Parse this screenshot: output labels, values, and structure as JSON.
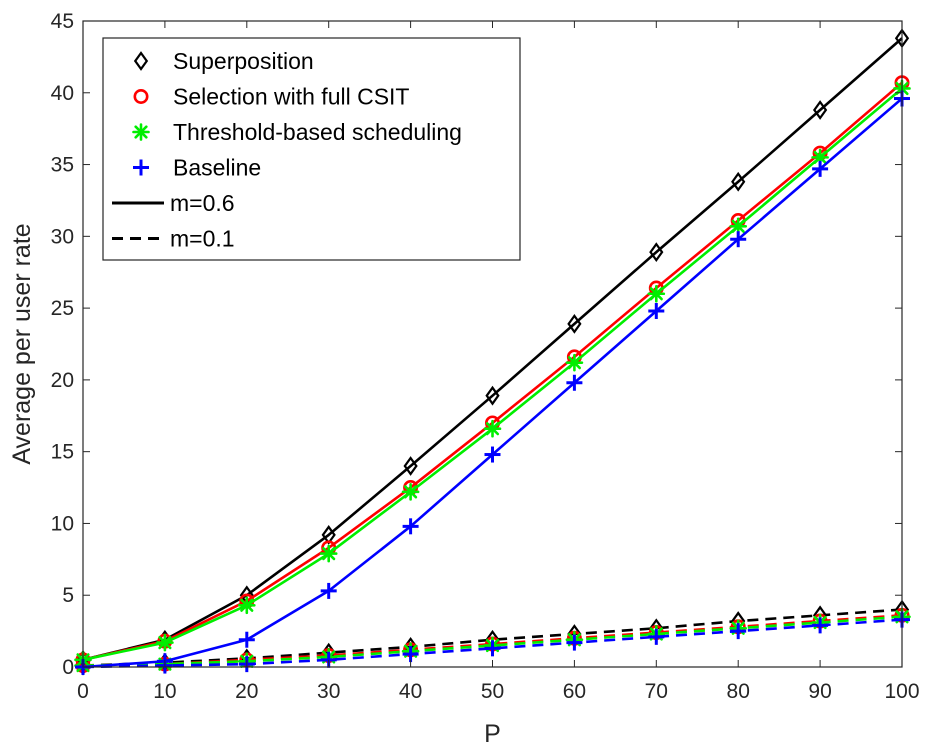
{
  "chart_data": {
    "type": "line",
    "title": "",
    "xlabel": "P",
    "ylabel": "Average per user rate",
    "xlim": [
      0,
      100
    ],
    "ylim": [
      0,
      45
    ],
    "xticks": [
      "0",
      "10",
      "20",
      "30",
      "40",
      "50",
      "60",
      "70",
      "80",
      "90",
      "100"
    ],
    "yticks": [
      "0",
      "5",
      "10",
      "15",
      "20",
      "25",
      "30",
      "35",
      "40",
      "45"
    ],
    "grid": false,
    "legend_position": "top-left",
    "x": [
      0,
      10,
      20,
      30,
      40,
      50,
      60,
      70,
      80,
      90,
      100
    ],
    "series": [
      {
        "name": "Superposition",
        "m": "m=0.6",
        "style": "solid",
        "color": "#000000",
        "marker": "diamond",
        "values": [
          0.5,
          1.9,
          5.0,
          9.2,
          14.0,
          18.9,
          23.9,
          28.9,
          33.8,
          38.8,
          43.8
        ]
      },
      {
        "name": "Selection with full CSIT",
        "m": "m=0.6",
        "style": "solid",
        "color": "#ff0000",
        "marker": "circle",
        "values": [
          0.5,
          1.8,
          4.6,
          8.3,
          12.5,
          17.0,
          21.6,
          26.4,
          31.1,
          35.8,
          40.7
        ]
      },
      {
        "name": "Threshold-based scheduling",
        "m": "m=0.6",
        "style": "solid",
        "color": "#00ee00",
        "marker": "asterisk",
        "values": [
          0.5,
          1.7,
          4.3,
          7.9,
          12.2,
          16.6,
          21.2,
          26.0,
          30.7,
          35.5,
          40.3
        ]
      },
      {
        "name": "Baseline",
        "m": "m=0.6",
        "style": "solid",
        "color": "#0000ff",
        "marker": "plus",
        "values": [
          0.0,
          0.4,
          1.9,
          5.3,
          9.8,
          14.8,
          19.8,
          24.8,
          29.8,
          34.7,
          39.6
        ]
      },
      {
        "name": "Superposition",
        "m": "m=0.1",
        "style": "dashed",
        "color": "#000000",
        "marker": "diamond",
        "values": [
          0.1,
          0.3,
          0.6,
          1.0,
          1.4,
          1.9,
          2.3,
          2.7,
          3.2,
          3.6,
          4.0
        ]
      },
      {
        "name": "Selection with full CSIT",
        "m": "m=0.1",
        "style": "dashed",
        "color": "#ff0000",
        "marker": "circle",
        "values": [
          0.1,
          0.2,
          0.5,
          0.8,
          1.2,
          1.6,
          2.0,
          2.4,
          2.8,
          3.2,
          3.6
        ]
      },
      {
        "name": "Threshold-based scheduling",
        "m": "m=0.1",
        "style": "dashed",
        "color": "#00ee00",
        "marker": "asterisk",
        "values": [
          0.1,
          0.2,
          0.4,
          0.7,
          1.1,
          1.5,
          1.9,
          2.3,
          2.7,
          3.1,
          3.5
        ]
      },
      {
        "name": "Baseline",
        "m": "m=0.1",
        "style": "dashed",
        "color": "#0000ff",
        "marker": "plus",
        "values": [
          0.0,
          0.1,
          0.2,
          0.5,
          0.9,
          1.3,
          1.7,
          2.1,
          2.5,
          2.9,
          3.3
        ]
      }
    ],
    "legend": [
      {
        "label": "Superposition",
        "kind": "marker",
        "marker": "diamond",
        "color": "#000000"
      },
      {
        "label": "Selection with full CSIT",
        "kind": "marker",
        "marker": "circle",
        "color": "#ff0000"
      },
      {
        "label": "Threshold-based scheduling",
        "kind": "marker",
        "marker": "asterisk",
        "color": "#00ee00"
      },
      {
        "label": "Baseline",
        "kind": "marker",
        "marker": "plus",
        "color": "#0000ff"
      },
      {
        "label": "m=0.6",
        "kind": "line",
        "style": "solid",
        "color": "#000000"
      },
      {
        "label": "m=0.1",
        "kind": "line",
        "style": "dashed",
        "color": "#000000"
      }
    ]
  }
}
